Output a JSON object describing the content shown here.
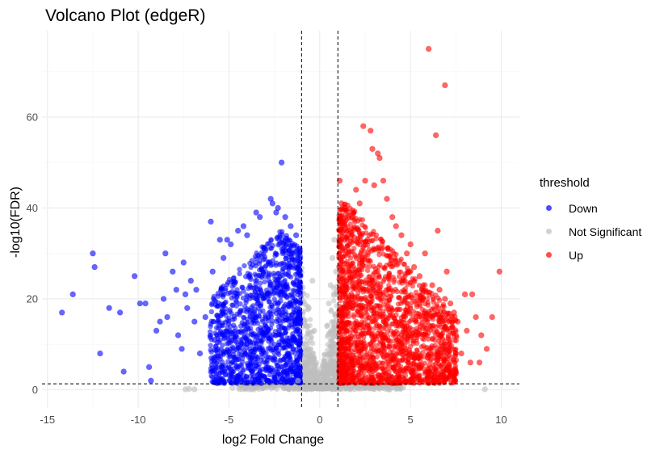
{
  "chart_data": {
    "type": "scatter",
    "title": "Volcano Plot (edgeR)",
    "xlabel": "log2 Fold Change",
    "ylabel": "-log10(FDR)",
    "xlim": [
      -15.3,
      11.0
    ],
    "ylim": [
      -4.0,
      79.0
    ],
    "xticks": [
      -15,
      -10,
      -5,
      0,
      5,
      10
    ],
    "yticks": [
      0,
      20,
      40,
      60
    ],
    "grid": true,
    "thresholds": {
      "log2fc": [
        -1,
        1
      ],
      "neg_log10_fdr": 1.3
    },
    "legend": {
      "title": "threshold",
      "position": "right",
      "entries": [
        {
          "label": "Down",
          "color": "#0000ff"
        },
        {
          "label": "Not Significant",
          "color": "#bebebe"
        },
        {
          "label": "Up",
          "color": "#ff0000"
        }
      ]
    },
    "series": [
      {
        "name": "Down",
        "color": "#0000ff",
        "points": [
          [
            -14.2,
            17
          ],
          [
            -13.6,
            21
          ],
          [
            -12.5,
            30
          ],
          [
            -12.4,
            27
          ],
          [
            -12.1,
            8
          ],
          [
            -11.6,
            18
          ],
          [
            -11.0,
            17
          ],
          [
            -10.8,
            4
          ],
          [
            -10.2,
            25
          ],
          [
            -9.9,
            19
          ],
          [
            -9.6,
            19
          ],
          [
            -9.4,
            5
          ],
          [
            -9.3,
            2
          ],
          [
            -9.0,
            13
          ],
          [
            -8.8,
            15
          ],
          [
            -8.6,
            20
          ],
          [
            -8.5,
            30
          ],
          [
            -8.4,
            16
          ],
          [
            -8.1,
            26
          ],
          [
            -7.9,
            22
          ],
          [
            -7.8,
            12
          ],
          [
            -7.6,
            9
          ],
          [
            -7.5,
            28
          ],
          [
            -7.4,
            21
          ],
          [
            -7.3,
            18
          ],
          [
            -7.1,
            24
          ],
          [
            -6.9,
            15
          ],
          [
            -6.8,
            22
          ],
          [
            -6.6,
            8
          ],
          [
            -6.3,
            16
          ],
          [
            -6.0,
            37
          ],
          [
            -5.9,
            26
          ],
          [
            -5.8,
            11
          ],
          [
            -5.5,
            33
          ],
          [
            -5.3,
            29
          ],
          [
            -5.1,
            33
          ],
          [
            -4.9,
            32
          ],
          [
            -4.5,
            35
          ],
          [
            -4.2,
            36
          ],
          [
            -4.0,
            34
          ],
          [
            -3.5,
            39
          ],
          [
            -3.3,
            38
          ],
          [
            -2.7,
            42
          ],
          [
            -2.6,
            41
          ],
          [
            -2.4,
            39
          ],
          [
            -2.3,
            40
          ],
          [
            -2.1,
            50
          ],
          [
            -1.9,
            38
          ],
          [
            -1.6,
            36
          ],
          [
            -1.3,
            34
          ],
          [
            -1.1,
            31
          ]
        ]
      },
      {
        "name": "Up",
        "color": "#ff0000",
        "points": [
          [
            1.1,
            46
          ],
          [
            1.2,
            41
          ],
          [
            1.4,
            40
          ],
          [
            1.6,
            39
          ],
          [
            1.8,
            38
          ],
          [
            2.0,
            44
          ],
          [
            2.2,
            41
          ],
          [
            2.4,
            58
          ],
          [
            2.5,
            46
          ],
          [
            2.8,
            57
          ],
          [
            2.9,
            53
          ],
          [
            3.0,
            45
          ],
          [
            3.2,
            52
          ],
          [
            3.3,
            51
          ],
          [
            3.5,
            46
          ],
          [
            3.7,
            42
          ],
          [
            4.0,
            38
          ],
          [
            4.2,
            36
          ],
          [
            4.5,
            34
          ],
          [
            4.8,
            30
          ],
          [
            5.0,
            32
          ],
          [
            5.2,
            27
          ],
          [
            5.5,
            25
          ],
          [
            5.8,
            30
          ],
          [
            6.0,
            75
          ],
          [
            6.2,
            23
          ],
          [
            6.4,
            56
          ],
          [
            6.5,
            35
          ],
          [
            6.6,
            22
          ],
          [
            6.9,
            67
          ],
          [
            6.9,
            20
          ],
          [
            7.0,
            26
          ],
          [
            7.2,
            19
          ],
          [
            7.4,
            17
          ],
          [
            7.6,
            15
          ],
          [
            7.8,
            8
          ],
          [
            8.0,
            21
          ],
          [
            8.1,
            13
          ],
          [
            8.4,
            21
          ],
          [
            8.6,
            16
          ],
          [
            8.8,
            6
          ],
          [
            8.9,
            12
          ],
          [
            9.2,
            9
          ],
          [
            9.5,
            16
          ],
          [
            9.9,
            26
          ],
          [
            4.3,
            3
          ],
          [
            5.1,
            4
          ],
          [
            6.7,
            4
          ],
          [
            7.1,
            5
          ],
          [
            8.3,
            6
          ]
        ]
      },
      {
        "name": "Not Significant",
        "color": "#bebebe",
        "points": [
          [
            -7.4,
            0.1
          ],
          [
            -7.2,
            0.2
          ],
          [
            -6.9,
            0.1
          ],
          [
            -4.8,
            0.4
          ],
          [
            -3.5,
            0.6
          ],
          [
            -2.6,
            0.8
          ],
          [
            -1.9,
            0.5
          ],
          [
            -1.2,
            2
          ],
          [
            -0.9,
            6
          ],
          [
            -0.8,
            10
          ],
          [
            -0.7,
            14
          ],
          [
            -0.6,
            18
          ],
          [
            -0.4,
            24
          ],
          [
            -0.3,
            13
          ],
          [
            -0.2,
            6
          ],
          [
            0.0,
            2
          ],
          [
            0.2,
            4
          ],
          [
            0.4,
            14
          ],
          [
            0.5,
            19
          ],
          [
            0.6,
            23
          ],
          [
            0.7,
            29
          ],
          [
            0.8,
            33
          ],
          [
            0.9,
            26
          ],
          [
            1.8,
            0.6
          ],
          [
            2.9,
            0.3
          ],
          [
            4.6,
            0.5
          ],
          [
            9.1,
            0.1
          ]
        ]
      }
    ]
  },
  "chart_style": {
    "grid_major": "#ebebeb",
    "grid_minor": "#f5f5f5",
    "threshold_line": "#000000"
  }
}
